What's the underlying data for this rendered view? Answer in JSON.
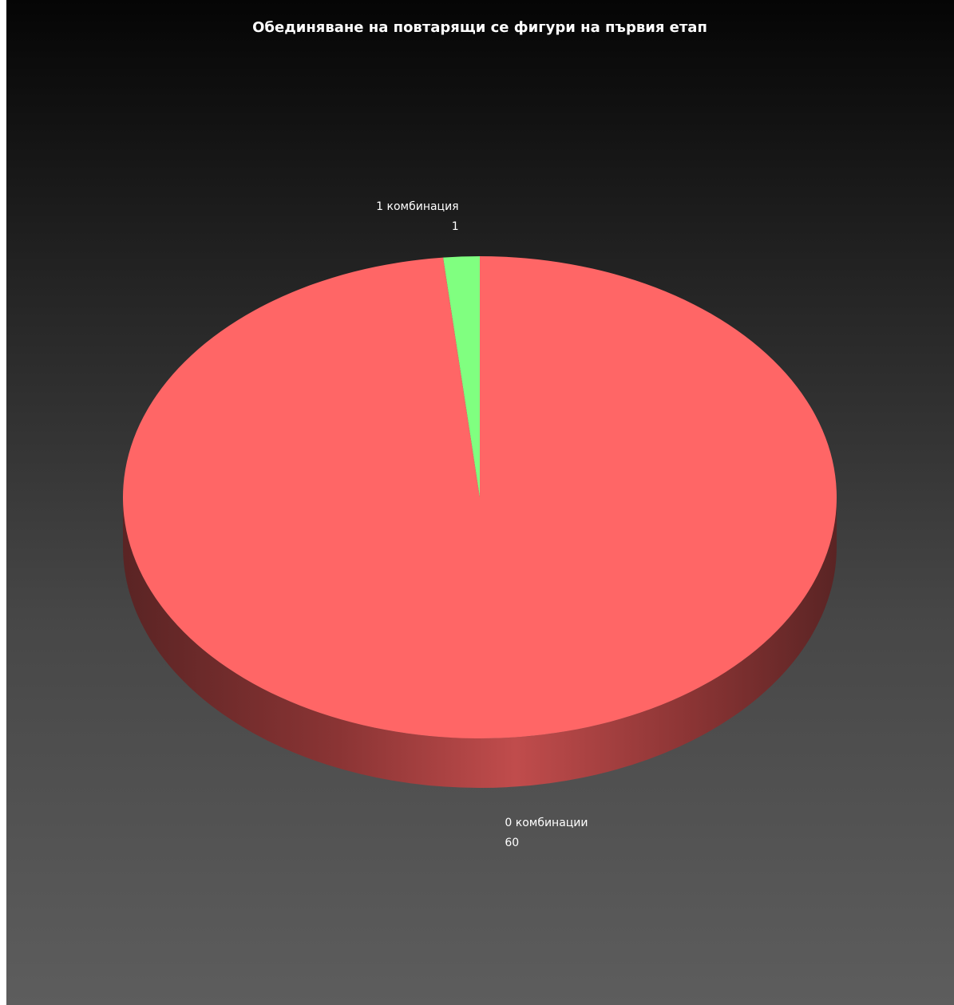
{
  "chart_data": {
    "type": "pie",
    "title": "Обединяване на повтарящи се фигури на първия етап",
    "three_d": true,
    "legend": "none",
    "start_angle_deg": 0,
    "direction": "clockwise",
    "slices": [
      {
        "label": "0 комбинации",
        "value": 60,
        "color": "#ff6666"
      },
      {
        "label": "1 комбинация",
        "value": 1,
        "color": "#80ff80"
      }
    ]
  }
}
